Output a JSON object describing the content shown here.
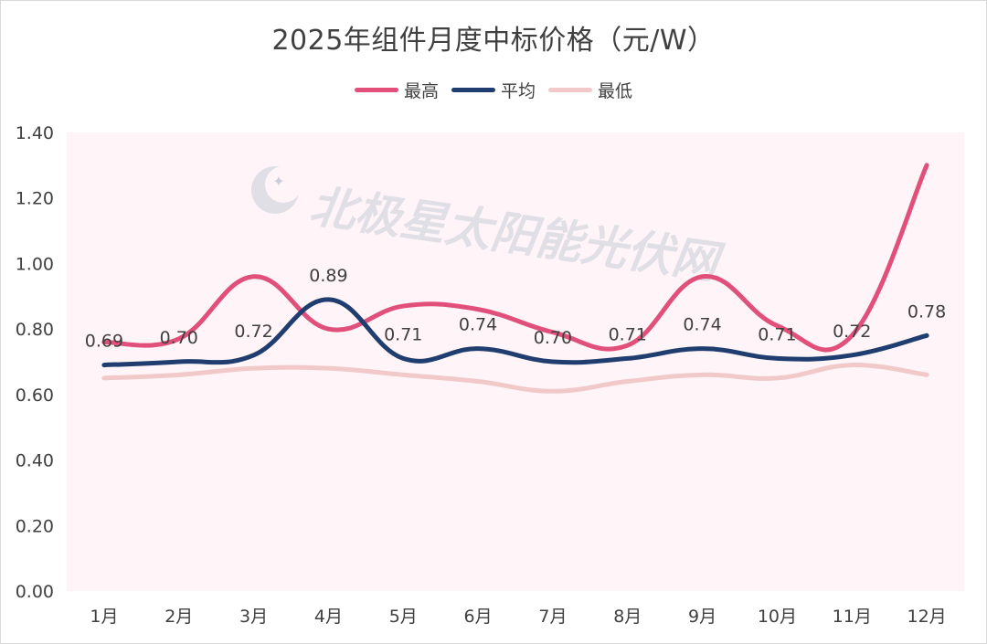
{
  "chart_data": {
    "type": "line",
    "title": "2025年组件月度中标价格（元/W）",
    "categories": [
      "1月",
      "2月",
      "3月",
      "4月",
      "5月",
      "6月",
      "7月",
      "8月",
      "9月",
      "10月",
      "11月",
      "12月"
    ],
    "series": [
      {
        "name": "最高",
        "color": "#e0507a",
        "values": [
          0.76,
          0.77,
          0.96,
          0.8,
          0.87,
          0.86,
          0.79,
          0.75,
          0.96,
          0.81,
          0.78,
          1.3
        ]
      },
      {
        "name": "平均",
        "color": "#1f3d6e",
        "values": [
          0.69,
          0.7,
          0.72,
          0.89,
          0.71,
          0.74,
          0.7,
          0.71,
          0.74,
          0.71,
          0.72,
          0.78
        ],
        "labels": [
          "0.69",
          "0.70",
          "0.72",
          "0.89",
          "0.71",
          "0.74",
          "0.70",
          "0.71",
          "0.74",
          "0.71",
          "0.72",
          "0.78"
        ]
      },
      {
        "name": "最低",
        "color": "#f2c9c9",
        "values": [
          0.65,
          0.66,
          0.68,
          0.68,
          0.66,
          0.64,
          0.61,
          0.64,
          0.66,
          0.65,
          0.69,
          0.66
        ]
      }
    ],
    "ylim": [
      0,
      1.4
    ],
    "yticks": [
      "0.00",
      "0.20",
      "0.40",
      "0.60",
      "0.80",
      "1.00",
      "1.20",
      "1.40"
    ],
    "legend_position": "top-center",
    "grid": false,
    "plot_background": "#fff4f7"
  },
  "watermark": {
    "text": "北极星太阳能光伏网",
    "icon": "star-moon-logo-icon"
  }
}
